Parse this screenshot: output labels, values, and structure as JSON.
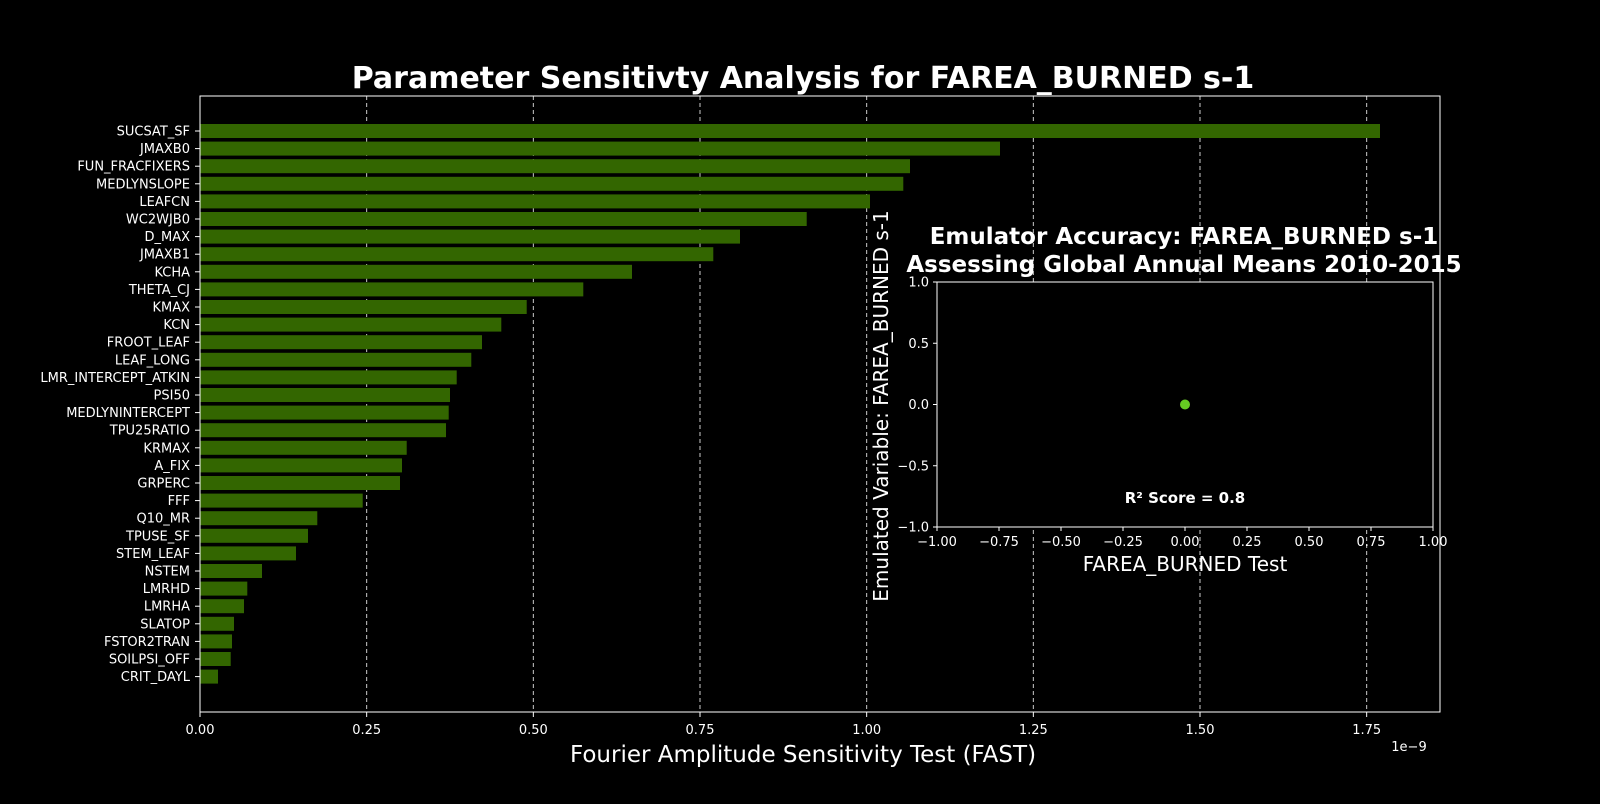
{
  "chart_data": [
    {
      "type": "bar",
      "orientation": "horizontal",
      "title": "Parameter Sensitivty Analysis for FAREA_BURNED s-1",
      "xlabel": "Fourier Amplitude Sensitivity Test (FAST)",
      "ylabel": "",
      "x_scale_label": "1e−9",
      "xlim": [
        0,
        1.86
      ],
      "xticks": [
        0,
        0.25,
        0.5,
        0.75,
        1.0,
        1.25,
        1.5,
        1.75
      ],
      "xtick_labels": [
        "0.00",
        "0.25",
        "0.50",
        "0.75",
        "1.00",
        "1.25",
        "1.50",
        "1.75"
      ],
      "grid": "x, dashed",
      "bar_color": "#336600",
      "categories": [
        "SUCSAT_SF",
        "JMAXB0",
        "FUN_FRACFIXERS",
        "MEDLYNSLOPE",
        "LEAFCN",
        "WC2WJB0",
        "D_MAX",
        "JMAXB1",
        "KCHA",
        "THETA_CJ",
        "KMAX",
        "KCN",
        "FROOT_LEAF",
        "LEAF_LONG",
        "LMR_INTERCEPT_ATKIN",
        "PSI50",
        "MEDLYNINTERCEPT",
        "TPU25RATIO",
        "KRMAX",
        "A_FIX",
        "GRPERC",
        "FFF",
        "Q10_MR",
        "TPUSE_SF",
        "STEM_LEAF",
        "NSTEM",
        "LMRHD",
        "LMRHA",
        "SLATOP",
        "FSTOR2TRAN",
        "SOILPSI_OFF",
        "CRIT_DAYL"
      ],
      "values": [
        1.77,
        1.2,
        1.065,
        1.055,
        1.005,
        0.91,
        0.81,
        0.77,
        0.648,
        0.575,
        0.49,
        0.452,
        0.423,
        0.407,
        0.385,
        0.375,
        0.373,
        0.369,
        0.31,
        0.303,
        0.3,
        0.244,
        0.176,
        0.162,
        0.144,
        0.093,
        0.071,
        0.066,
        0.051,
        0.048,
        0.046,
        0.027
      ]
    },
    {
      "type": "scatter",
      "title_line1": "Emulator Accuracy: FAREA_BURNED s-1",
      "title_line2": "Assessing Global Annual Means 2010-2015",
      "xlabel": "FAREA_BURNED Test",
      "ylabel": "Emulated Variable: FAREA_BURNED s-1",
      "xlim": [
        -1,
        1
      ],
      "ylim": [
        -1,
        1
      ],
      "xticks": [
        -1,
        -0.75,
        -0.5,
        -0.25,
        0,
        0.25,
        0.5,
        0.75,
        1
      ],
      "xtick_labels": [
        "−1.00",
        "−0.75",
        "−0.50",
        "−0.25",
        "0.00",
        "0.25",
        "0.50",
        "0.75",
        "1.00"
      ],
      "yticks": [
        -1,
        -0.5,
        0,
        0.5,
        1
      ],
      "ytick_labels": [
        "−1.0",
        "−0.5",
        "0.0",
        "0.5",
        "1.0"
      ],
      "points": [
        {
          "x": 0,
          "y": 0
        }
      ],
      "point_color": "#66cc22",
      "annotation": "R² Score = 0.8"
    }
  ]
}
